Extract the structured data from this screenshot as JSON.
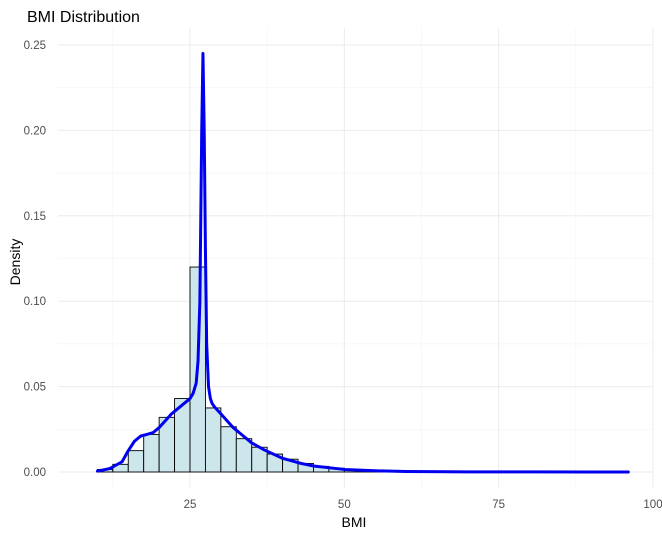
{
  "chart_data": {
    "type": "bar",
    "title": "BMI Distribution",
    "xlabel": "BMI",
    "ylabel": "Density",
    "xlim": [
      8,
      96
    ],
    "ylim": [
      0,
      0.25
    ],
    "x_ticks": [
      25,
      50,
      75,
      100
    ],
    "y_ticks": [
      0.0,
      0.05,
      0.1,
      0.15,
      0.2,
      0.25
    ],
    "x_tick_labels": [
      "25",
      "50",
      "75",
      "100"
    ],
    "y_tick_labels": [
      "0.00",
      "0.05",
      "0.10",
      "0.15",
      "0.20",
      "0.25"
    ],
    "grid": true,
    "legend": "none",
    "histogram": {
      "bin_width": 2.5,
      "bins": [
        {
          "x0": 10.0,
          "x1": 12.5,
          "density": 0.0015
        },
        {
          "x0": 12.5,
          "x1": 15.0,
          "density": 0.0045
        },
        {
          "x0": 15.0,
          "x1": 17.5,
          "density": 0.0125
        },
        {
          "x0": 17.5,
          "x1": 20.0,
          "density": 0.022
        },
        {
          "x0": 20.0,
          "x1": 22.5,
          "density": 0.032
        },
        {
          "x0": 22.5,
          "x1": 25.0,
          "density": 0.043
        },
        {
          "x0": 25.0,
          "x1": 27.5,
          "density": 0.12
        },
        {
          "x0": 27.5,
          "x1": 30.0,
          "density": 0.0375
        },
        {
          "x0": 30.0,
          "x1": 32.5,
          "density": 0.0265
        },
        {
          "x0": 32.5,
          "x1": 35.0,
          "density": 0.0195
        },
        {
          "x0": 35.0,
          "x1": 37.5,
          "density": 0.0145
        },
        {
          "x0": 37.5,
          "x1": 40.0,
          "density": 0.0105
        },
        {
          "x0": 40.0,
          "x1": 42.5,
          "density": 0.0075
        },
        {
          "x0": 42.5,
          "x1": 45.0,
          "density": 0.005
        },
        {
          "x0": 45.0,
          "x1": 47.5,
          "density": 0.0033
        },
        {
          "x0": 47.5,
          "x1": 50.0,
          "density": 0.0022
        },
        {
          "x0": 50.0,
          "x1": 52.5,
          "density": 0.0014
        },
        {
          "x0": 52.5,
          "x1": 55.0,
          "density": 0.0009
        },
        {
          "x0": 55.0,
          "x1": 57.5,
          "density": 0.0006
        },
        {
          "x0": 57.5,
          "x1": 60.0,
          "density": 0.0004
        }
      ]
    },
    "density_curve": {
      "x": [
        10,
        12,
        14,
        15,
        16,
        17,
        18,
        19,
        20,
        21,
        22,
        23,
        24,
        25,
        25.5,
        26,
        26.3,
        26.6,
        26.9,
        27.1,
        27.3,
        27.5,
        27.7,
        28,
        28.3,
        28.6,
        29,
        30,
        31,
        32,
        33,
        35,
        37,
        40,
        43,
        45,
        50,
        55,
        60,
        70,
        80,
        90,
        96
      ],
      "y": [
        0.0005,
        0.002,
        0.006,
        0.0125,
        0.018,
        0.021,
        0.022,
        0.023,
        0.026,
        0.03,
        0.034,
        0.037,
        0.04,
        0.043,
        0.046,
        0.052,
        0.065,
        0.1,
        0.2,
        0.245,
        0.2,
        0.13,
        0.075,
        0.05,
        0.043,
        0.04,
        0.038,
        0.034,
        0.03,
        0.026,
        0.023,
        0.017,
        0.013,
        0.008,
        0.005,
        0.0035,
        0.0015,
        0.0007,
        0.0003,
        0.0001,
        5e-05,
        2e-05,
        0.0
      ]
    },
    "colors": {
      "bar_fill": "#cce6ec",
      "bar_stroke": "#000000",
      "curve": "#0000ee",
      "grid": "#ebebeb"
    }
  }
}
